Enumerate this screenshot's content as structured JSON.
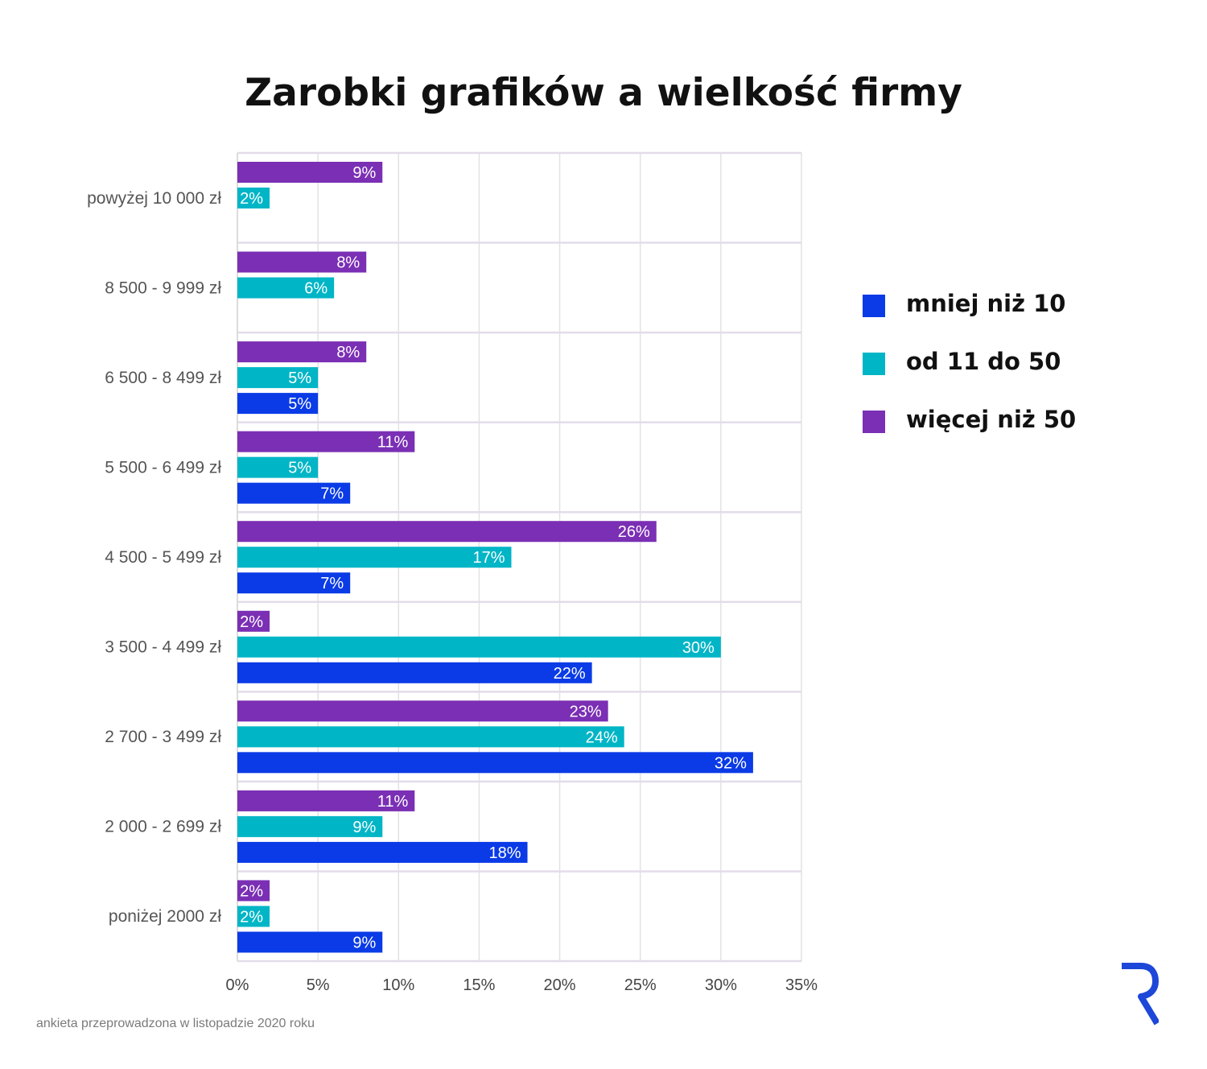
{
  "title": "Zarobki grafików a wielkość firmy",
  "footnote": "ankieta przeprowadzona w listopadzie 2020 roku",
  "logo": "R",
  "colors": {
    "mniej_niz_10": "#0a3be6",
    "od_11_do_50": "#00b5c6",
    "wiecej_niz_50": "#7a2fb4",
    "grid": "#e2e2e2",
    "category_separator": "#e3dcea"
  },
  "chart_data": {
    "type": "bar",
    "orientation": "horizontal",
    "title": "Zarobki grafików a wielkość firmy",
    "categories": [
      "powyżej 10 000 zł",
      "8 500 - 9 999 zł",
      "6 500 - 8 499 zł",
      "5 500 - 6 499 zł",
      "4 500 - 5 499 zł",
      "3 500 - 4 499 zł",
      "2 700 - 3 499 zł",
      "2 000 - 2 699 zł",
      "poniżej 2000 zł"
    ],
    "series": [
      {
        "name": "więcej niż 50",
        "color": "#7a2fb4",
        "values": [
          9,
          8,
          8,
          11,
          26,
          2,
          23,
          11,
          2
        ],
        "labels": [
          "9%",
          "8%",
          "8%",
          "11%",
          "26%",
          "2%",
          "23%",
          "11%",
          "2%"
        ]
      },
      {
        "name": "od 11 do 50",
        "color": "#00b5c6",
        "values": [
          2,
          6,
          5,
          5,
          17,
          30,
          24,
          9,
          2
        ],
        "labels": [
          "2%",
          "6%",
          "5%",
          "5%",
          "17%",
          "30%",
          "24%",
          "9%",
          "2%"
        ]
      },
      {
        "name": "mniej niż 10",
        "color": "#0a3be6",
        "values": [
          null,
          null,
          5,
          7,
          7,
          22,
          32,
          18,
          9
        ],
        "labels": [
          null,
          null,
          "5%",
          "7%",
          "7%",
          "22%",
          "32%",
          "18%",
          "9%"
        ]
      }
    ],
    "xlim": [
      0,
      35
    ],
    "xticks": [
      "0%",
      "5%",
      "10%",
      "15%",
      "20%",
      "25%",
      "30%",
      "35%"
    ],
    "grid": true,
    "legend_position": "right",
    "legend": [
      "mniej niż 10",
      "od 11 do 50",
      "więcej niż 50"
    ]
  }
}
